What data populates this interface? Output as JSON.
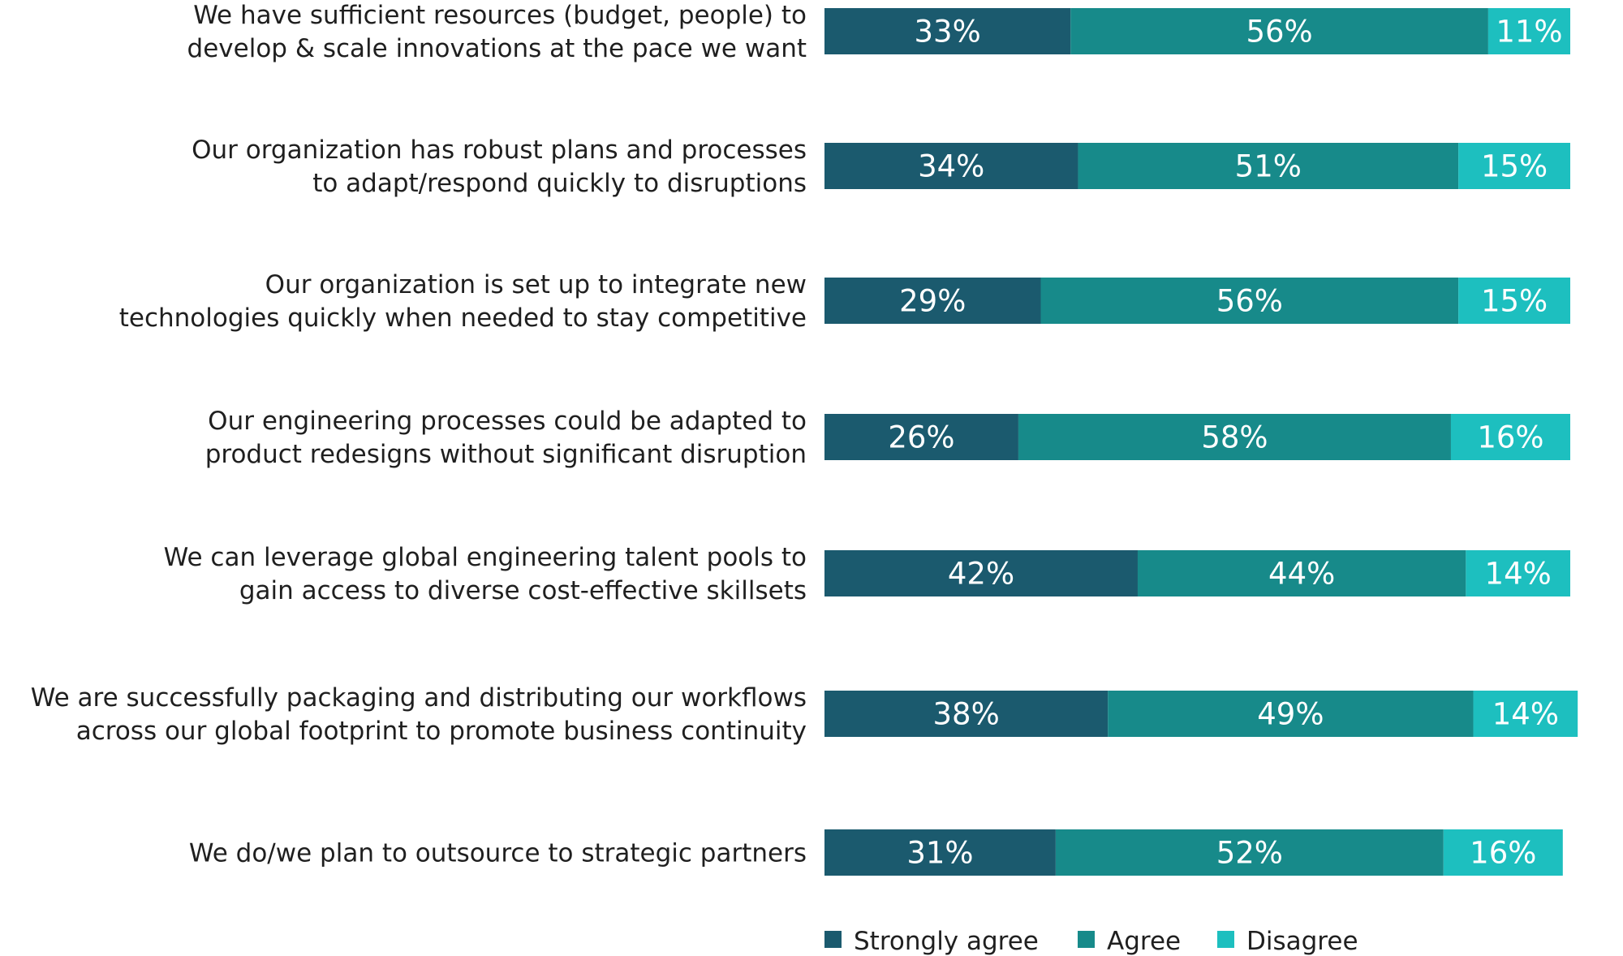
{
  "chart_data": {
    "type": "bar",
    "orientation": "horizontal",
    "stacked": true,
    "categories": [
      [
        "We have sufficient resources (budget, people) to",
        "develop & scale innovations at the pace we want"
      ],
      [
        "Our organization has robust plans and processes",
        "to adapt/respond quickly to disruptions"
      ],
      [
        "Our organization is set up to integrate new",
        "technologies quickly when needed to stay competitive"
      ],
      [
        "Our engineering processes could be adapted to",
        "product redesigns without significant disruption"
      ],
      [
        "We can leverage global engineering talent pools to",
        "gain access to diverse cost-effective skillsets"
      ],
      [
        "We are successfully packaging and distributing our workflows",
        "across our global footprint to promote business continuity"
      ],
      [
        "We do/we plan to outsource to strategic partners"
      ]
    ],
    "series": [
      {
        "name": "Strongly agree",
        "color": "#1b5a6e",
        "values": [
          33,
          34,
          29,
          26,
          42,
          38,
          31
        ]
      },
      {
        "name": "Agree",
        "color": "#178a8a",
        "values": [
          56,
          51,
          56,
          58,
          44,
          49,
          52
        ]
      },
      {
        "name": "Disagree",
        "color": "#1dbfbf",
        "values": [
          11,
          15,
          15,
          16,
          14,
          14,
          16
        ]
      }
    ],
    "value_suffix": "%",
    "xlim": [
      0,
      100
    ],
    "legend_position": "bottom"
  }
}
